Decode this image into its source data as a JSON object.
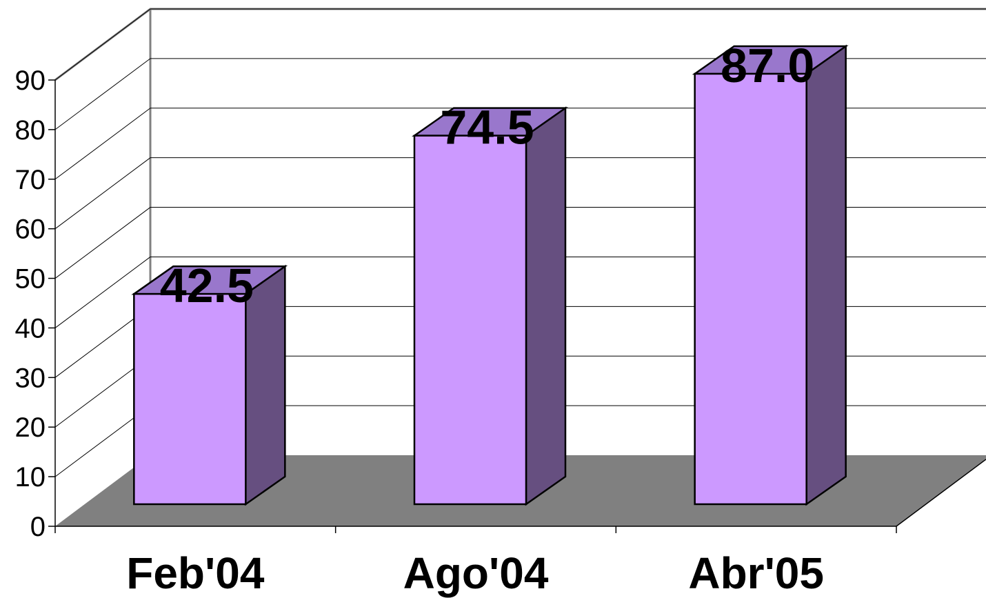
{
  "chart_data": {
    "type": "bar",
    "style": "3d-column",
    "categories": [
      "Feb'04",
      "Ago'04",
      "Abr'05"
    ],
    "values": [
      42.5,
      74.5,
      87.0
    ],
    "value_labels": [
      "42.5",
      "74.5",
      "87.0"
    ],
    "ylim": [
      0,
      90
    ],
    "yticks": [
      "0",
      "10",
      "20",
      "30",
      "40",
      "50",
      "60",
      "70",
      "80",
      "90"
    ],
    "grid": true,
    "legend": "none",
    "colors": {
      "bar_front": "#cc99ff",
      "bar_top": "#9977cc",
      "bar_side": "#664f80",
      "floor": "#808080",
      "wall": "#ffffff",
      "gridline": "#000000",
      "wall_edge": "#808080"
    }
  }
}
